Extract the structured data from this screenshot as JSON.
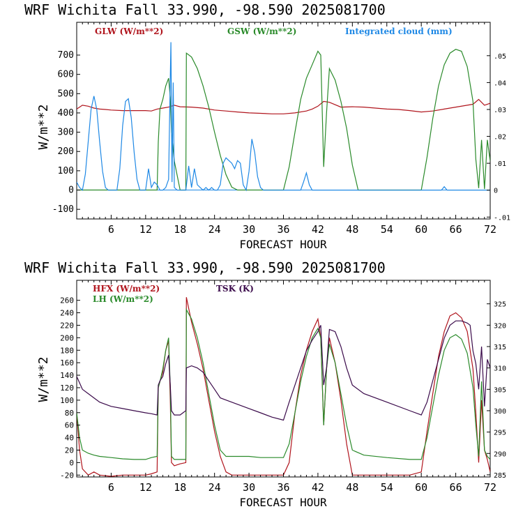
{
  "colors": {
    "red": "#b0141c",
    "green": "#2a8a2a",
    "blue": "#1e88e5",
    "purple": "#3a0a4a",
    "axis": "#000000"
  },
  "chart_data": [
    {
      "type": "line",
      "title": "WRF   Wichita Fall  33.990, -98.590  2025081700",
      "xlabel": "FORECAST HOUR",
      "ylabel": "W/m**2",
      "xlim": [
        0,
        72
      ],
      "ylim": [
        -150,
        870
      ],
      "y2lim": [
        -0.0107,
        0.0624
      ],
      "x_ticks": [
        6,
        12,
        18,
        24,
        30,
        36,
        42,
        48,
        54,
        60,
        66,
        72
      ],
      "y_ticks": [
        -100,
        0,
        100,
        200,
        300,
        400,
        500,
        600,
        700
      ],
      "y2_ticks": [
        -0.01,
        0,
        0.01,
        0.02,
        0.03,
        0.04,
        0.05
      ],
      "y2_tick_labels": [
        "-.01",
        "0",
        ".01",
        ".02",
        ".03",
        ".04",
        ".05"
      ],
      "series": [
        {
          "name": "GLW (W/m**2)",
          "axis": "left",
          "color": "red",
          "x": [
            0,
            1,
            2,
            3,
            4,
            5,
            6,
            8,
            10,
            12,
            13,
            14,
            15,
            16,
            17,
            18,
            20,
            22,
            24,
            26,
            28,
            30,
            32,
            34,
            36,
            38,
            40,
            41,
            42,
            43,
            44,
            46,
            48,
            50,
            52,
            54,
            56,
            58,
            60,
            62,
            64,
            66,
            68,
            69,
            70,
            71,
            72
          ],
          "y": [
            420,
            440,
            435,
            425,
            420,
            418,
            415,
            412,
            412,
            412,
            410,
            420,
            425,
            430,
            440,
            432,
            430,
            425,
            415,
            410,
            405,
            400,
            398,
            395,
            395,
            400,
            410,
            420,
            435,
            460,
            455,
            430,
            432,
            430,
            425,
            420,
            418,
            412,
            405,
            410,
            420,
            430,
            440,
            445,
            470,
            440,
            450
          ]
        },
        {
          "name": "GSW (W/m**2)",
          "axis": "left",
          "color": "green",
          "x": [
            0,
            14,
            14.2,
            14.5,
            15,
            15.5,
            16,
            16.3,
            16.5,
            17,
            18,
            19,
            19.1,
            20,
            21,
            22,
            23,
            24,
            25,
            26,
            27,
            28,
            29,
            30,
            36,
            37,
            38,
            39,
            40,
            41,
            42,
            42.5,
            43,
            43.5,
            44,
            45,
            46,
            47,
            48,
            49,
            60,
            61,
            62,
            63,
            64,
            65,
            66,
            67,
            68,
            69,
            69.5,
            70,
            70.5,
            71,
            71.5,
            72
          ],
          "y": [
            0,
            0,
            250,
            420,
            470,
            540,
            580,
            480,
            300,
            150,
            0,
            0,
            710,
            690,
            630,
            540,
            430,
            300,
            180,
            80,
            15,
            0,
            0,
            0,
            0,
            120,
            300,
            470,
            580,
            650,
            720,
            700,
            120,
            400,
            630,
            570,
            460,
            320,
            130,
            0,
            0,
            170,
            370,
            540,
            650,
            710,
            730,
            720,
            640,
            460,
            160,
            10,
            260,
            5,
            260,
            150
          ]
        },
        {
          "name": "Integrated cloud (mm)",
          "axis": "right",
          "color": "blue",
          "x": [
            0,
            0.5,
            1,
            1.5,
            2,
            2.5,
            3,
            3.5,
            4,
            4.5,
            5,
            5.5,
            6,
            6.5,
            7,
            7.5,
            8,
            8.5,
            9,
            9.5,
            10,
            10.5,
            11,
            11.5,
            12,
            12.5,
            13,
            13.5,
            14,
            14.5,
            15,
            15.5,
            16,
            16.2,
            16.4,
            16.6,
            16.8,
            17,
            17.5,
            18,
            18.5,
            19,
            19.5,
            20,
            20.5,
            21,
            21.5,
            22,
            22.5,
            23,
            23.5,
            24,
            24.5,
            25,
            25.5,
            26,
            26.5,
            27,
            27.5,
            28,
            28.5,
            29,
            29.5,
            30,
            30.5,
            31,
            31.5,
            32,
            32.5,
            33,
            33.5,
            34,
            39,
            39.5,
            40,
            40.5,
            41,
            63,
            63.5,
            64,
            64.5,
            65,
            72
          ],
          "y": [
            0.003,
            0.001,
            0.0,
            0.006,
            0.018,
            0.03,
            0.035,
            0.03,
            0.018,
            0.007,
            0.001,
            0.0,
            0.0,
            0.0,
            0.0,
            0.008,
            0.024,
            0.033,
            0.034,
            0.027,
            0.014,
            0.004,
            0.0,
            0.0,
            0.0,
            0.008,
            0.001,
            0.003,
            0.002,
            0.0,
            0.0,
            0.001,
            0.004,
            0.03,
            0.055,
            0.003,
            0.04,
            0.001,
            0.0,
            0.0,
            0.0,
            0.0,
            0.009,
            0.001,
            0.008,
            0.002,
            0.001,
            0.0,
            0.001,
            0.0,
            0.001,
            0.0,
            0.0,
            0.002,
            0.01,
            0.012,
            0.011,
            0.01,
            0.008,
            0.011,
            0.01,
            0.002,
            0.0,
            0.007,
            0.019,
            0.014,
            0.005,
            0.001,
            0.0,
            0.0,
            0.0,
            0.0,
            0.0,
            0.003,
            0.0064,
            0.002,
            0.0,
            0.0,
            0.0,
            0.0013,
            0.0,
            0.0,
            0.0
          ]
        }
      ]
    },
    {
      "type": "line",
      "title": "WRF   Wichita Fall  33.990, -98.590  2025081700",
      "xlabel": "FORECAST HOUR",
      "ylabel": "W/m**2",
      "xlim": [
        0,
        72
      ],
      "ylim": [
        -23,
        292
      ],
      "y2lim": [
        284.5,
        330.5
      ],
      "x_ticks": [
        6,
        12,
        18,
        24,
        30,
        36,
        42,
        48,
        54,
        60,
        66,
        72
      ],
      "y_ticks": [
        -20,
        0,
        20,
        40,
        60,
        80,
        100,
        120,
        140,
        160,
        180,
        200,
        220,
        240,
        260
      ],
      "y2_ticks": [
        285,
        290,
        295,
        300,
        305,
        310,
        315,
        320,
        325
      ],
      "y2_tick_labels": [
        "285",
        "290",
        "295",
        "300",
        "305",
        "310",
        "315",
        "320",
        "325"
      ],
      "series": [
        {
          "name": "HFX (W/m**2)",
          "axis": "left",
          "color": "red",
          "x": [
            0,
            0.5,
            1,
            2,
            3,
            4,
            6,
            8,
            10,
            12,
            13,
            14,
            14.2,
            14.5,
            15,
            15.5,
            16,
            16.3,
            16.5,
            17,
            18,
            19,
            19.1,
            20,
            21,
            22,
            23,
            24,
            25,
            26,
            27,
            28,
            30,
            32,
            34,
            36,
            37,
            38,
            39,
            40,
            41,
            42,
            42.5,
            43,
            43.5,
            44,
            45,
            46,
            47,
            48,
            50,
            54,
            58,
            60,
            61,
            62,
            63,
            64,
            65,
            66,
            67,
            68,
            69,
            69.5,
            70,
            70.5,
            71,
            71.5,
            72
          ],
          "y": [
            80,
            20,
            -10,
            -20,
            -15,
            -20,
            -22,
            -20,
            -20,
            -20,
            -18,
            -15,
            120,
            130,
            145,
            180,
            195,
            100,
            0,
            -5,
            -2,
            0,
            265,
            225,
            190,
            150,
            100,
            50,
            10,
            -15,
            -20,
            -20,
            -20,
            -20,
            -20,
            -20,
            0,
            80,
            140,
            180,
            210,
            230,
            200,
            60,
            150,
            200,
            160,
            100,
            30,
            -20,
            -20,
            -20,
            -20,
            -15,
            50,
            110,
            170,
            210,
            235,
            240,
            232,
            210,
            150,
            80,
            0,
            100,
            20,
            5,
            -15
          ]
        },
        {
          "name": "LH  (W/m**2)",
          "axis": "left",
          "color": "green",
          "x": [
            0,
            0.5,
            1,
            2,
            3,
            4,
            6,
            8,
            10,
            12,
            13,
            14,
            14.2,
            14.5,
            15,
            15.5,
            16,
            16.3,
            16.5,
            17,
            18,
            19,
            19.1,
            20,
            21,
            22,
            23,
            24,
            25,
            26,
            27,
            28,
            30,
            32,
            34,
            36,
            37,
            38,
            39,
            40,
            41,
            42,
            42.5,
            43,
            43.5,
            44,
            45,
            46,
            47,
            48,
            50,
            54,
            58,
            60,
            61,
            62,
            63,
            64,
            65,
            66,
            67,
            68,
            69,
            69.5,
            70,
            70.5,
            71,
            71.5,
            72
          ],
          "y": [
            80,
            40,
            20,
            15,
            12,
            10,
            8,
            6,
            5,
            5,
            8,
            10,
            120,
            130,
            150,
            180,
            200,
            120,
            10,
            5,
            5,
            5,
            245,
            230,
            200,
            160,
            110,
            60,
            20,
            10,
            10,
            10,
            10,
            8,
            8,
            8,
            30,
            80,
            130,
            170,
            200,
            215,
            200,
            60,
            150,
            190,
            160,
            110,
            60,
            20,
            12,
            8,
            5,
            5,
            40,
            90,
            140,
            180,
            200,
            205,
            198,
            175,
            120,
            60,
            10,
            130,
            20,
            10,
            5
          ]
        },
        {
          "name": "TSK (K)",
          "axis": "right",
          "color": "purple",
          "x": [
            0,
            1,
            2,
            3,
            4,
            6,
            8,
            10,
            12,
            13,
            14,
            14.2,
            14.5,
            15,
            15.5,
            16,
            16.3,
            16.5,
            17,
            18,
            18.5,
            19,
            19.1,
            20,
            21,
            22,
            23,
            24,
            25,
            26,
            28,
            30,
            32,
            34,
            36,
            37,
            38,
            39,
            40,
            41,
            42,
            42.5,
            43,
            43.5,
            44,
            45,
            46,
            47,
            48,
            50,
            54,
            58,
            60,
            61,
            62,
            63,
            64,
            65,
            66,
            67,
            68,
            68.5,
            69,
            69.5,
            70,
            70.5,
            71,
            71.5,
            72
          ],
          "y": [
            308,
            305,
            304,
            303,
            302,
            301,
            300.5,
            300,
            299.5,
            299.3,
            299,
            306,
            307,
            308,
            311,
            313,
            306,
            300,
            299,
            299,
            299.5,
            300,
            310,
            310.5,
            310,
            309,
            307,
            305,
            303,
            302.5,
            301.5,
            300.5,
            299.5,
            298.5,
            297.8,
            302,
            306,
            310,
            314,
            316.5,
            318.5,
            320,
            306,
            310,
            319,
            318.5,
            315,
            310,
            306,
            304,
            302,
            300,
            299,
            302,
            307,
            312,
            317,
            320,
            321,
            321,
            320.5,
            320,
            314,
            311,
            305,
            315,
            301,
            312,
            310
          ]
        }
      ]
    }
  ]
}
